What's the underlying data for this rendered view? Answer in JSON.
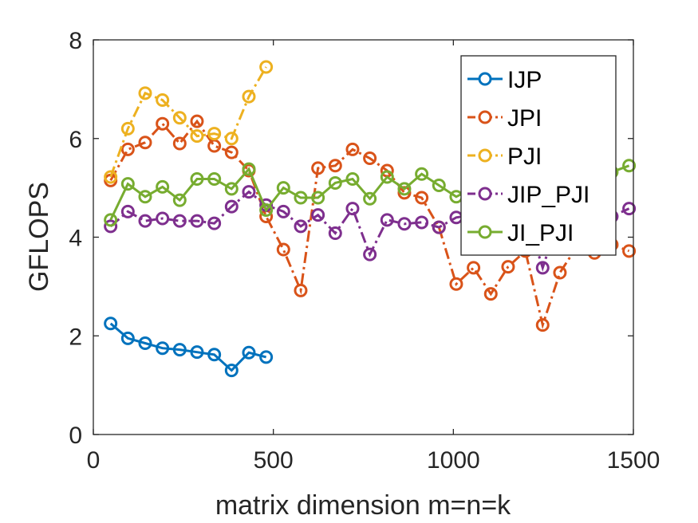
{
  "chart_data": {
    "type": "line",
    "xlabel": "matrix dimension m=n=k",
    "ylabel": "GFLOPS",
    "xlim": [
      0,
      1500
    ],
    "ylim": [
      0,
      8
    ],
    "xticks": [
      0,
      500,
      1000,
      1500
    ],
    "xtick_labels": [
      "0",
      "500",
      "1000",
      "1500"
    ],
    "yticks": [
      0,
      2,
      4,
      6,
      8
    ],
    "ytick_labels": [
      "0",
      "2",
      "4",
      "6",
      "8"
    ],
    "grid": false,
    "legend_position": "top-right",
    "series": [
      {
        "name": "IJP",
        "color": "#0072BD",
        "dash": "solid",
        "x": [
          48,
          96,
          144,
          192,
          240,
          288,
          336,
          384,
          432,
          480
        ],
        "y": [
          2.25,
          1.95,
          1.85,
          1.75,
          1.72,
          1.67,
          1.62,
          1.3,
          1.66,
          1.57
        ]
      },
      {
        "name": "JPI",
        "color": "#D95319",
        "dash": "dashdot",
        "x": [
          48,
          96,
          144,
          192,
          240,
          288,
          336,
          384,
          432,
          480,
          528,
          576,
          624,
          672,
          720,
          768,
          816,
          864,
          912,
          960,
          1008,
          1056,
          1104,
          1152,
          1200,
          1248,
          1296,
          1344,
          1392,
          1440,
          1488
        ],
        "y": [
          5.15,
          5.78,
          5.92,
          6.3,
          5.9,
          6.35,
          5.85,
          5.72,
          5.35,
          4.42,
          3.75,
          2.92,
          5.4,
          5.45,
          5.78,
          5.6,
          5.35,
          4.9,
          4.8,
          4.2,
          3.05,
          3.38,
          2.85,
          3.4,
          3.72,
          2.22,
          3.28,
          3.82,
          3.68,
          3.85,
          3.72
        ]
      },
      {
        "name": "PJI",
        "color": "#EDB120",
        "dash": "dashdot",
        "x": [
          48,
          96,
          144,
          192,
          240,
          288,
          336,
          384,
          432,
          480
        ],
        "y": [
          5.22,
          6.2,
          6.92,
          6.78,
          6.42,
          6.05,
          6.1,
          6.0,
          6.85,
          7.45
        ]
      },
      {
        "name": "JIP_PJI",
        "color": "#7E2F8E",
        "dash": "dashdot",
        "x": [
          48,
          96,
          144,
          192,
          240,
          288,
          336,
          384,
          432,
          480,
          528,
          576,
          624,
          672,
          720,
          768,
          816,
          864,
          912,
          960,
          1008,
          1056,
          1104,
          1152,
          1200,
          1248,
          1296,
          1344,
          1392,
          1440,
          1488
        ],
        "y": [
          4.22,
          4.52,
          4.33,
          4.38,
          4.33,
          4.33,
          4.28,
          4.62,
          4.92,
          4.65,
          4.52,
          4.22,
          4.45,
          4.08,
          4.58,
          3.65,
          4.35,
          4.27,
          4.3,
          4.2,
          4.4,
          4.45,
          4.35,
          4.4,
          4.5,
          3.38,
          4.45,
          4.55,
          4.3,
          4.42,
          4.58
        ]
      },
      {
        "name": "JI_PJI",
        "color": "#77AC30",
        "dash": "solid",
        "x": [
          48,
          96,
          144,
          192,
          240,
          288,
          336,
          384,
          432,
          480,
          528,
          576,
          624,
          672,
          720,
          768,
          816,
          864,
          912,
          960,
          1008,
          1056,
          1104,
          1152,
          1200,
          1248,
          1296,
          1344,
          1392,
          1440,
          1488
        ],
        "y": [
          4.35,
          5.08,
          4.82,
          5.02,
          4.75,
          5.18,
          5.18,
          4.98,
          5.38,
          4.55,
          5.0,
          4.8,
          4.8,
          5.1,
          5.18,
          4.78,
          5.22,
          4.98,
          5.28,
          5.05,
          4.82,
          5.0,
          5.1,
          5.05,
          5.18,
          5.0,
          5.1,
          5.22,
          5.18,
          5.32,
          5.45
        ]
      }
    ]
  }
}
